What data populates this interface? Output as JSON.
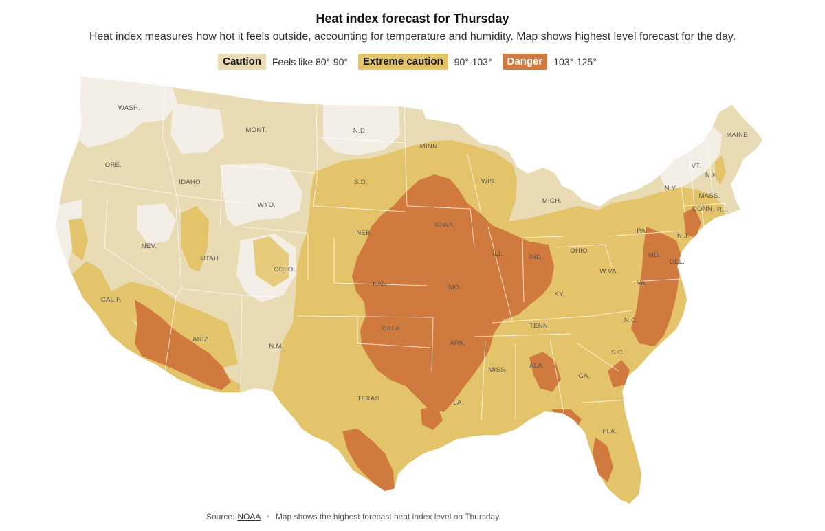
{
  "title": "Heat index forecast for Thursday",
  "subtitle": "Heat index measures how hot it feels outside, accounting for temperature and humidity. Map shows highest level forecast for the day.",
  "legend": [
    {
      "label": "Caution",
      "range": "Feels like 80°-90°",
      "color": "#e9dbb3"
    },
    {
      "label": "Extreme caution",
      "range": "90°-103°",
      "color": "#e4c46a"
    },
    {
      "label": "Danger",
      "range": "103°-125°",
      "color": "#d07a3f"
    }
  ],
  "colors": {
    "below": "#f3efe6",
    "caution": "#e9dbb3",
    "extreme": "#e4c46a",
    "danger": "#d07a3f",
    "border": "#ffffff"
  },
  "states": [
    "WASH.",
    "ORE.",
    "IDAHO",
    "MONT.",
    "N.D.",
    "MINN.",
    "S.D.",
    "WYO.",
    "NEV.",
    "CALIF.",
    "UTAH",
    "COLO.",
    "NEB.",
    "IOWA",
    "WIS.",
    "MICH.",
    "ILL.",
    "IND.",
    "OHIO",
    "KAN.",
    "MO.",
    "ARIZ.",
    "N.M.",
    "OKLA.",
    "ARK.",
    "TEXAS",
    "LA.",
    "MISS.",
    "ALA.",
    "TENN.",
    "KY.",
    "W.VA.",
    "VA.",
    "N.C.",
    "S.C.",
    "GA.",
    "FLA.",
    "PA.",
    "N.Y.",
    "VT.",
    "N.H.",
    "MAINE",
    "MASS.",
    "CONN.",
    "R.I.",
    "N.J.",
    "DEL.",
    "MD."
  ],
  "footer": {
    "source_label": "Source:",
    "source_link": "NOAA",
    "note": "Map shows the highest forecast heat index level on Thursday."
  }
}
